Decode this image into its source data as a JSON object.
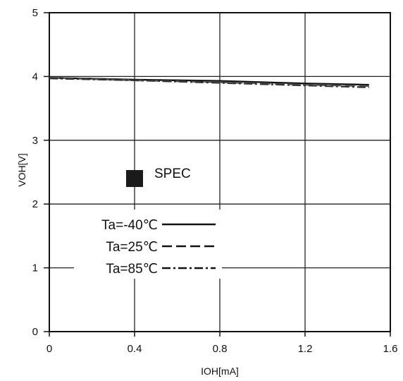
{
  "chart_data": {
    "type": "line",
    "xlabel": "IOH[mA]",
    "ylabel": "VOH[V]",
    "xlim": [
      0,
      1.6
    ],
    "ylim": [
      0,
      5
    ],
    "x_ticks": [
      "0",
      "0.4",
      "0.8",
      "1.2",
      "1.6"
    ],
    "y_ticks": [
      "0",
      "1",
      "2",
      "3",
      "4",
      "5"
    ],
    "grid": true,
    "series": [
      {
        "name": "Ta=-40℃",
        "style": "solid",
        "x": [
          0,
          0.4,
          0.8,
          1.2,
          1.5
        ],
        "y": [
          3.98,
          3.95,
          3.93,
          3.89,
          3.87
        ]
      },
      {
        "name": "Ta=25℃",
        "style": "dashed",
        "x": [
          0,
          0.4,
          0.8,
          1.2,
          1.5
        ],
        "y": [
          3.98,
          3.94,
          3.91,
          3.87,
          3.85
        ]
      },
      {
        "name": "Ta=85℃",
        "style": "dashdot",
        "x": [
          0,
          0.4,
          0.8,
          1.2,
          1.5
        ],
        "y": [
          3.97,
          3.94,
          3.9,
          3.86,
          3.83
        ]
      }
    ],
    "spec_point": {
      "label": "SPEC",
      "x": 0.4,
      "y": 2.4
    },
    "legend_placement": "left-center"
  }
}
